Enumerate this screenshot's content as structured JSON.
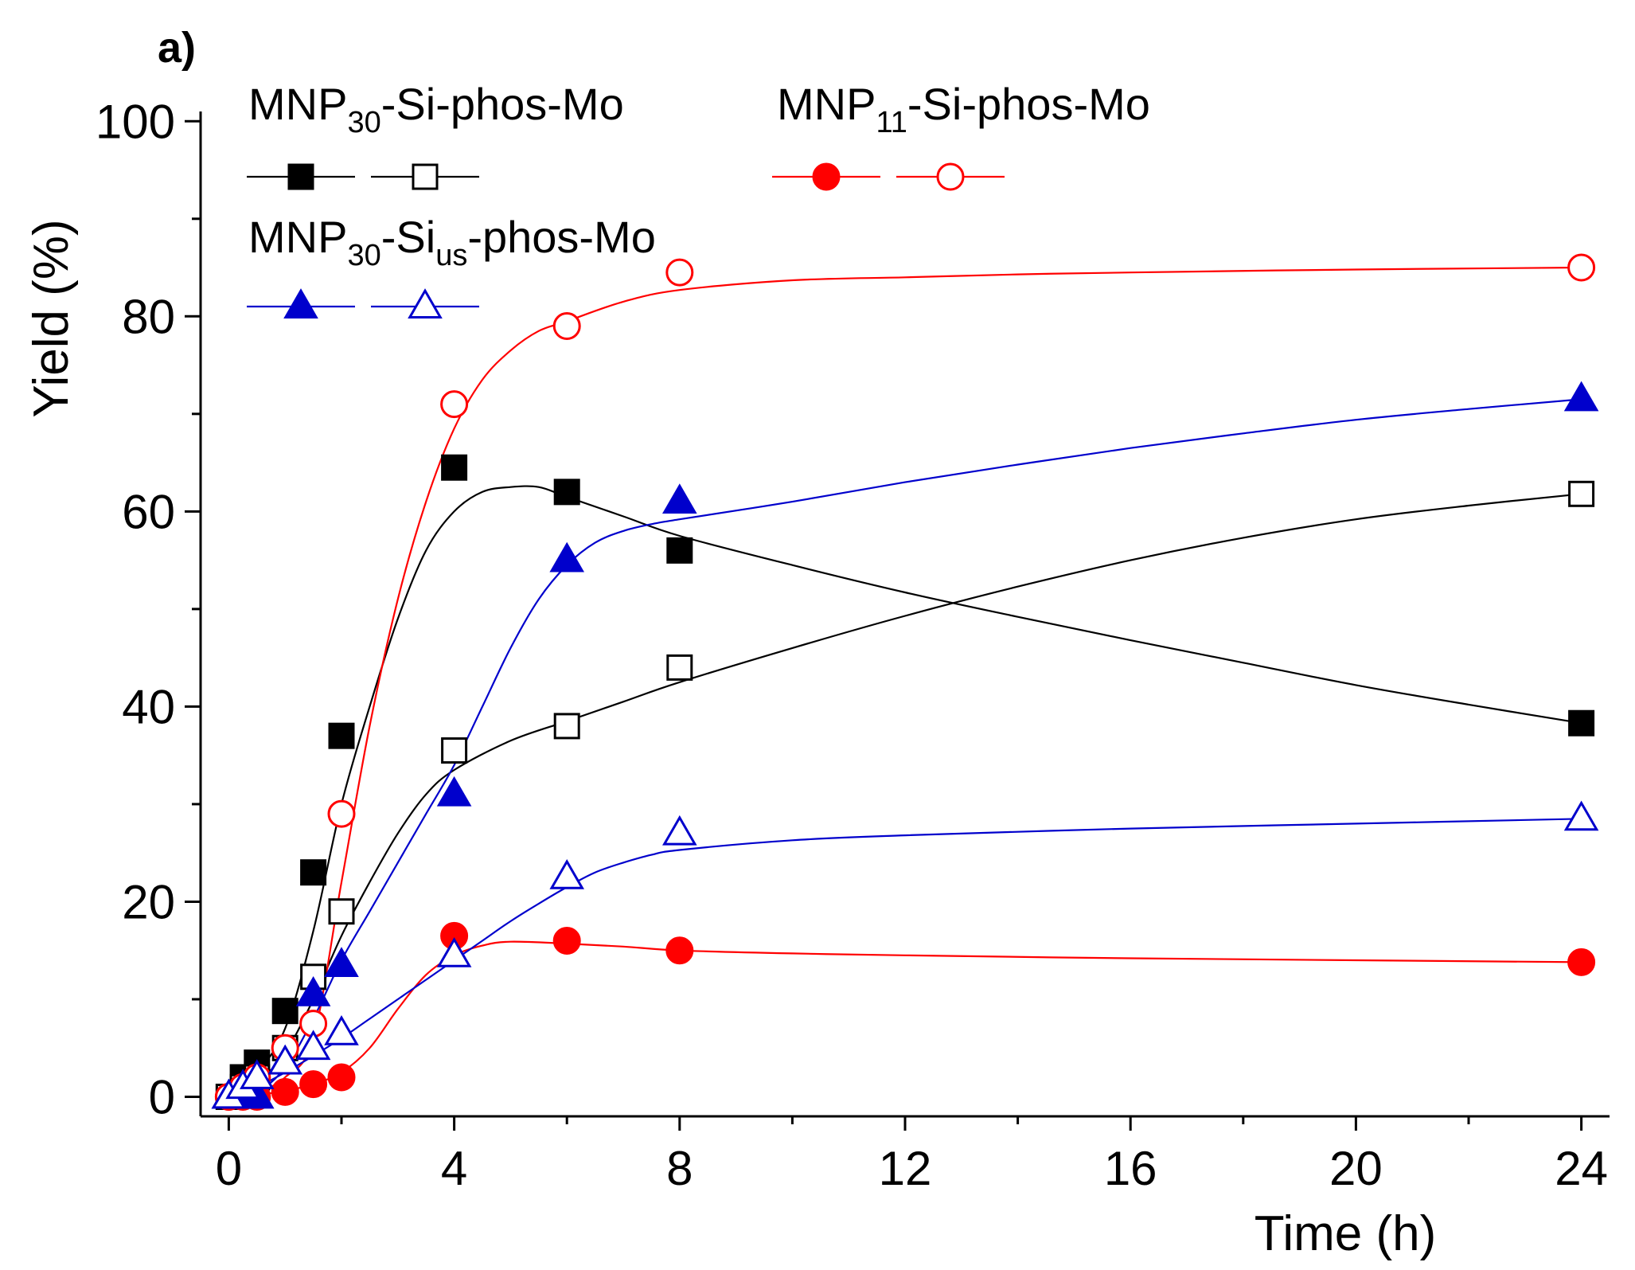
{
  "chart_data": {
    "type": "scatter",
    "panel_label": "a)",
    "xlabel": "Time (h)",
    "ylabel": "Yield (%)",
    "xlim": [
      -0.5,
      24.5
    ],
    "ylim": [
      -2,
      101
    ],
    "x_ticks": [
      "0",
      "4",
      "8",
      "12",
      "16",
      "20",
      "24"
    ],
    "y_ticks": [
      "0",
      "20",
      "40",
      "60",
      "80",
      "100"
    ],
    "grid": false,
    "legend_groups": [
      {
        "base": "MNP",
        "sub": "30",
        "suffix_a": "-Si",
        "sub2": "",
        "suffix_b": "-phos-Mo",
        "color": "#000000",
        "marker": "square"
      },
      {
        "base": "MNP",
        "sub": "11",
        "suffix_a": "-Si",
        "sub2": "",
        "suffix_b": "-phos-Mo",
        "color": "#ff0000",
        "marker": "circle"
      },
      {
        "base": "MNP",
        "sub": "30",
        "suffix_a": "-Si",
        "sub2": "us",
        "suffix_b": "-phos-Mo",
        "color": "#0000cc",
        "marker": "triangle"
      }
    ],
    "series": [
      {
        "name": "MNP30-Si-phos-Mo (filled)",
        "color": "#000000",
        "marker": "square",
        "filled": true,
        "x": [
          0,
          0.25,
          0.5,
          1,
          1.5,
          2,
          4,
          6,
          8,
          24
        ],
        "y": [
          0,
          2,
          3.5,
          8.8,
          23,
          37,
          64.5,
          62,
          56,
          38.3
        ],
        "curve_x": [
          0,
          0.5,
          1,
          1.5,
          2,
          2.5,
          3,
          3.5,
          4,
          4.5,
          5,
          5.5,
          6,
          7,
          8,
          10,
          12,
          14,
          16,
          18,
          20,
          22,
          24
        ],
        "curve_y": [
          0,
          2.5,
          7,
          17,
          30,
          40,
          49,
          56,
          60,
          62,
          62.5,
          62.5,
          61.5,
          59.5,
          57.5,
          54.5,
          51.7,
          49.2,
          46.8,
          44.5,
          42.2,
          40.2,
          38.3
        ]
      },
      {
        "name": "MNP30-Si-phos-Mo (open)",
        "color": "#000000",
        "marker": "square",
        "filled": false,
        "x": [
          0,
          0.25,
          0.5,
          1,
          1.5,
          2,
          4,
          6,
          8,
          24
        ],
        "y": [
          0,
          1,
          2,
          5,
          12.3,
          19,
          35.5,
          38,
          44,
          61.8
        ],
        "curve_x": [
          0,
          0.5,
          1,
          1.5,
          2,
          2.5,
          3,
          3.5,
          4,
          5,
          6,
          7,
          8,
          10,
          12,
          14,
          16,
          18,
          20,
          22,
          24
        ],
        "curve_y": [
          0,
          1.5,
          4.5,
          10,
          16.5,
          22,
          27,
          31,
          33.5,
          36.5,
          38.5,
          40.5,
          42.5,
          46,
          49.3,
          52.3,
          55,
          57.3,
          59.2,
          60.6,
          61.8
        ]
      },
      {
        "name": "MNP11-Si-phos-Mo (filled)",
        "color": "#ff0000",
        "marker": "circle",
        "filled": true,
        "x": [
          0,
          0.25,
          0.5,
          1,
          1.5,
          2,
          4,
          6,
          8,
          24
        ],
        "y": [
          0,
          0,
          0,
          0.5,
          1.3,
          2,
          16.5,
          16,
          15,
          13.8
        ],
        "curve_x": [
          0,
          0.5,
          1,
          1.5,
          2,
          2.5,
          3,
          3.5,
          4,
          4.5,
          5,
          6,
          7,
          8,
          10,
          12,
          16,
          20,
          24
        ],
        "curve_y": [
          0,
          0.2,
          0.6,
          1.3,
          2.5,
          5,
          9,
          12.5,
          14.5,
          15.5,
          15.9,
          15.7,
          15.4,
          15,
          14.7,
          14.5,
          14.2,
          14,
          13.8
        ]
      },
      {
        "name": "MNP11-Si-phos-Mo (open)",
        "color": "#ff0000",
        "marker": "circle",
        "filled": false,
        "x": [
          0,
          0.25,
          0.5,
          1,
          1.5,
          2,
          4,
          6,
          8,
          24
        ],
        "y": [
          0,
          1,
          2,
          5,
          7.5,
          29,
          71,
          79,
          84.5,
          85
        ],
        "curve_x": [
          0,
          0.5,
          1,
          1.5,
          2,
          2.5,
          3,
          3.5,
          4,
          4.5,
          5,
          5.5,
          6,
          7,
          8,
          10,
          12,
          14,
          16,
          20,
          24
        ],
        "curve_y": [
          0,
          0.5,
          2,
          6,
          22,
          38,
          51,
          61,
          68.5,
          73.5,
          76.5,
          78.5,
          79.5,
          81.5,
          82.7,
          83.7,
          84,
          84.3,
          84.5,
          84.8,
          85
        ]
      },
      {
        "name": "MNP30-Sius-phos-Mo (filled)",
        "color": "#0000cc",
        "marker": "triangle",
        "filled": true,
        "x": [
          0,
          0.25,
          0.5,
          1,
          1.5,
          2,
          4,
          6,
          8,
          24
        ],
        "y": [
          0,
          0,
          0,
          3.5,
          10.5,
          13.5,
          31,
          55,
          61,
          71.5
        ],
        "curve_x": [
          0,
          0.5,
          1,
          1.5,
          2,
          2.5,
          3,
          3.5,
          4,
          4.5,
          5,
          5.5,
          6,
          6.5,
          7,
          7.5,
          8,
          10,
          12,
          14,
          16,
          18,
          20,
          22,
          24
        ],
        "curve_y": [
          0,
          0.5,
          3,
          8,
          14,
          19,
          24,
          29,
          34,
          40,
          46,
          51,
          54.5,
          56.8,
          58,
          58.7,
          59.2,
          61,
          63,
          64.8,
          66.5,
          68,
          69.4,
          70.5,
          71.5
        ]
      },
      {
        "name": "MNP30-Sius-phos-Mo (open)",
        "color": "#0000cc",
        "marker": "triangle",
        "filled": false,
        "x": [
          0,
          0.25,
          0.5,
          1,
          1.5,
          2,
          4,
          6,
          8,
          24
        ],
        "y": [
          0,
          1,
          2,
          3.5,
          5,
          6.5,
          14.5,
          22.5,
          27,
          28.5
        ],
        "curve_x": [
          0,
          0.5,
          1,
          1.5,
          2,
          2.5,
          3,
          3.5,
          4,
          4.5,
          5,
          5.5,
          6,
          6.5,
          7,
          7.5,
          8,
          10,
          12,
          16,
          20,
          24
        ],
        "curve_y": [
          0,
          1,
          2.5,
          4.2,
          6,
          8,
          10,
          12,
          14,
          16,
          18,
          19.8,
          21.5,
          23,
          24,
          24.8,
          25.3,
          26.3,
          26.8,
          27.5,
          28,
          28.5
        ]
      }
    ]
  }
}
